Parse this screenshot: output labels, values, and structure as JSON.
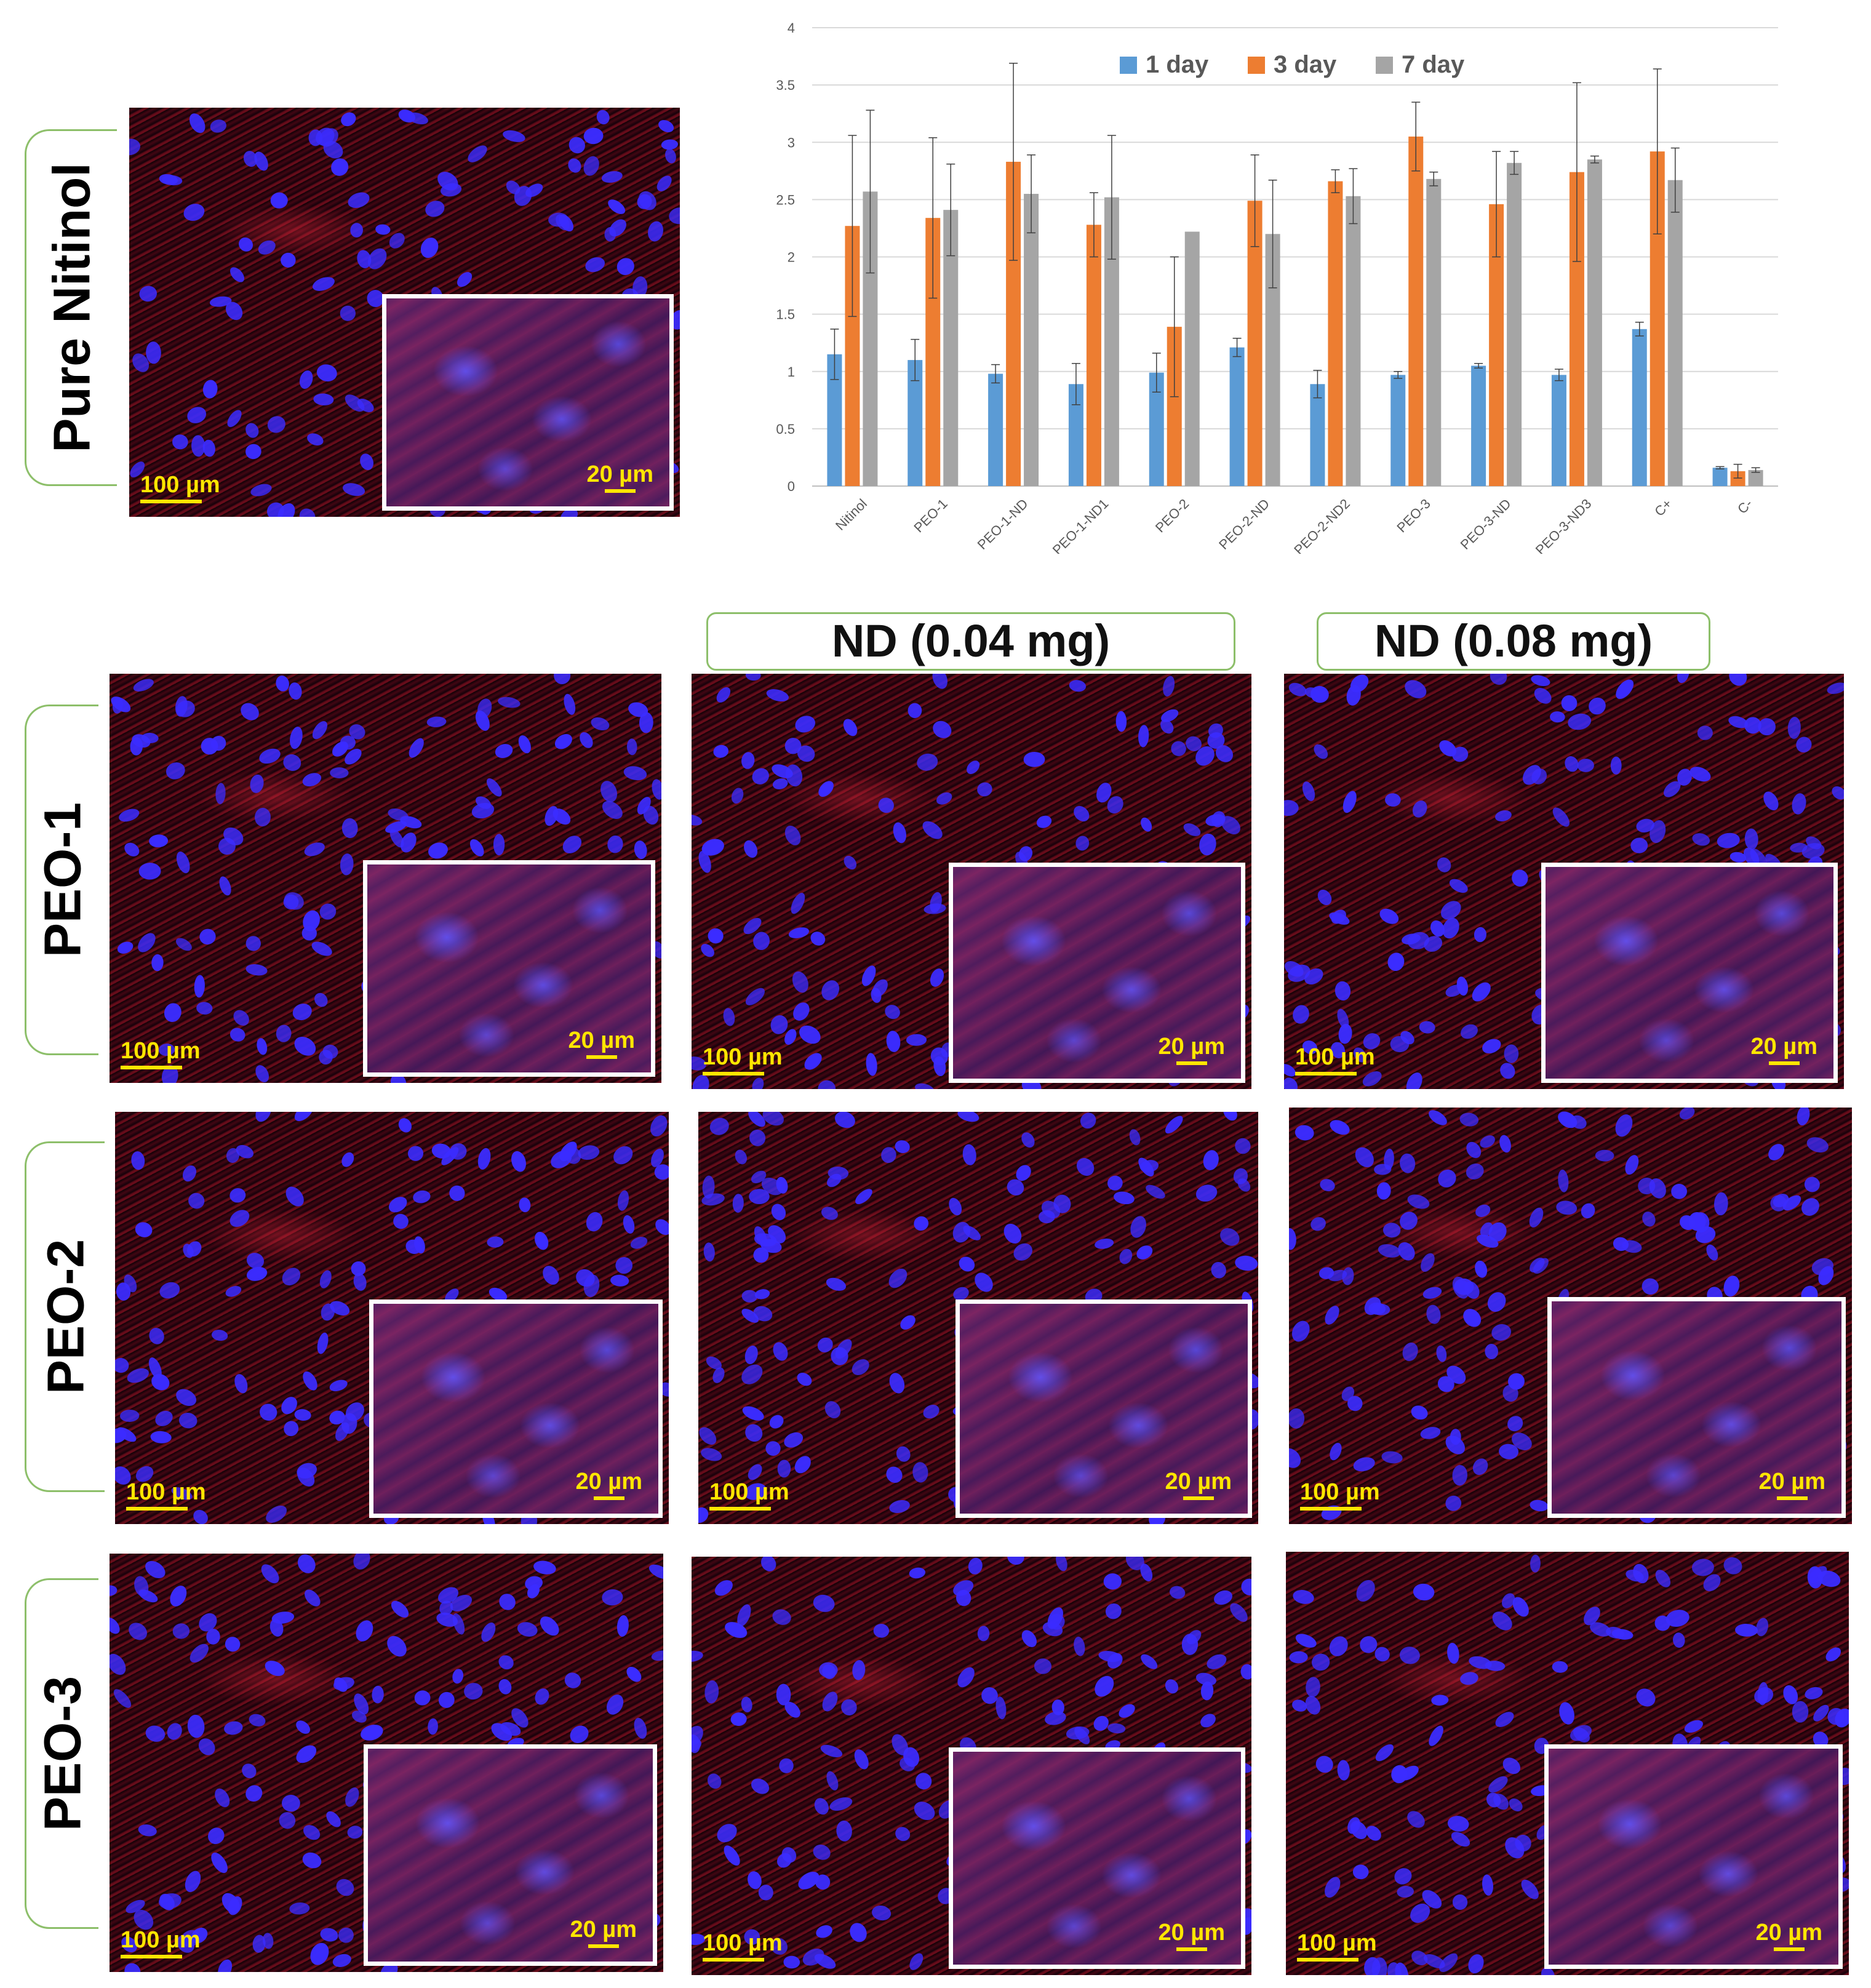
{
  "row_labels": {
    "pure": "Pure Nitinol",
    "peo1": "PEO-1",
    "peo2": "PEO-2",
    "peo3": "PEO-3"
  },
  "column_headers": {
    "nd004": "ND (0.04 mg)",
    "nd008": "ND (0.08 mg)"
  },
  "scalebars": {
    "large": "100 µm",
    "small": "20 µm"
  },
  "colors": {
    "day1": "#5b9bd5",
    "day3": "#ed7d31",
    "day7": "#a5a5a5",
    "label_border": "#8dbf6a",
    "scalebar": "#ffe600",
    "nucleus": "#3b2cff"
  },
  "chart_data": {
    "type": "bar",
    "categories": [
      "Nitinol",
      "PEO-1",
      "PEO-1-ND",
      "PEO-1-ND1",
      "PEO-2",
      "PEO-2-ND",
      "PEO-2-ND2",
      "PEO-3",
      "PEO-3-ND",
      "PEO-3-ND3",
      "C+",
      "C-"
    ],
    "series": [
      {
        "name": "1 day",
        "values": [
          1.15,
          1.1,
          0.98,
          0.89,
          0.99,
          1.21,
          0.89,
          0.97,
          1.05,
          0.97,
          1.37,
          0.16
        ],
        "errors": [
          0.22,
          0.18,
          0.08,
          0.18,
          0.17,
          0.08,
          0.12,
          0.03,
          0.02,
          0.05,
          0.06,
          0.01
        ]
      },
      {
        "name": "3 day",
        "values": [
          2.27,
          2.34,
          2.83,
          2.28,
          1.39,
          2.49,
          2.66,
          3.05,
          2.46,
          2.74,
          2.92,
          0.13
        ],
        "errors": [
          0.79,
          0.7,
          0.86,
          0.28,
          0.61,
          0.4,
          0.1,
          0.3,
          0.46,
          0.78,
          0.72,
          0.06
        ]
      },
      {
        "name": "7 day",
        "values": [
          2.57,
          2.41,
          2.55,
          2.52,
          2.22,
          2.2,
          2.53,
          2.68,
          2.82,
          2.85,
          2.67,
          0.14
        ],
        "errors": [
          0.71,
          0.4,
          0.34,
          0.54,
          0.0,
          0.47,
          0.24,
          0.06,
          0.1,
          0.03,
          0.28,
          0.02
        ]
      }
    ],
    "ylim": [
      0,
      4
    ],
    "yticks": [
      "0",
      "0.5",
      "1",
      "1.5",
      "2",
      "2.5",
      "3",
      "3.5",
      "4"
    ],
    "grid": true,
    "legend": "top"
  }
}
